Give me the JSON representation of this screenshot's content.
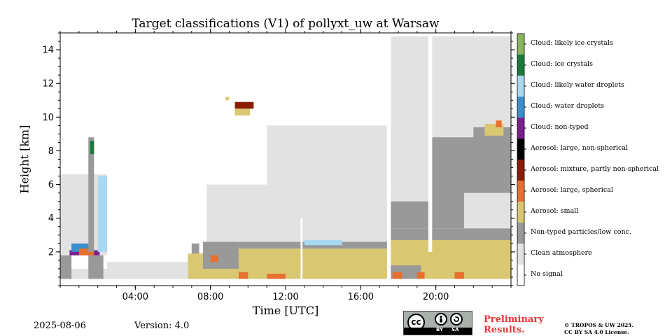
{
  "chart_data": {
    "type": "heatmap",
    "title": "Target classifications (V1) of pollyxt_uw at Warsaw",
    "xlabel": "Time [UTC]",
    "ylabel": "Height [km]",
    "xlim": [
      "00:00",
      "24:00"
    ],
    "ylim": [
      0,
      15
    ],
    "x_ticks": [
      "04:00",
      "08:00",
      "12:00",
      "16:00",
      "20:00"
    ],
    "y_ticks": [
      2,
      4,
      6,
      8,
      10,
      12,
      14
    ],
    "legend_placement": "right colorbar",
    "classes": [
      {
        "label": "Cloud: likely ice crystals",
        "color": "#8ab55d"
      },
      {
        "label": "Cloud: ice crystals",
        "color": "#1a7a3c"
      },
      {
        "label": "Cloud: likely water droplets",
        "color": "#a9d8f2"
      },
      {
        "label": "Cloud: water droplets",
        "color": "#3b8fcc"
      },
      {
        "label": "Cloud: non-typed",
        "color": "#7b1f8c"
      },
      {
        "label": "Aerosol: large, non-spherical",
        "color": "#000000"
      },
      {
        "label": "Aerosol: mixture, partly non-spherical",
        "color": "#8a1d05"
      },
      {
        "label": "Aerosol: large, spherical",
        "color": "#e8702f"
      },
      {
        "label": "Aerosol: small",
        "color": "#dac772"
      },
      {
        "label": "Non-typed particles/low conc.",
        "color": "#999999"
      },
      {
        "label": "Clean atmosphere",
        "color": "#e2e2e2"
      },
      {
        "label": "No signal",
        "color": "#ffffff"
      }
    ],
    "regions": [
      {
        "class": "Clean atmosphere",
        "t0": 0.0,
        "t1": 24.0,
        "h0": 0.4,
        "h1": 1.0
      },
      {
        "class": "Non-typed particles/low conc.",
        "t0": 0.0,
        "t1": 0.6,
        "h0": 0.4,
        "h1": 1.8
      },
      {
        "class": "Clean atmosphere",
        "t0": 0.0,
        "t1": 2.5,
        "h0": 1.8,
        "h1": 6.6
      },
      {
        "class": "Clean atmosphere",
        "t0": 2.5,
        "t1": 6.8,
        "h0": 0.4,
        "h1": 1.4
      },
      {
        "class": "Non-typed particles/low conc.",
        "t0": 1.5,
        "t1": 2.3,
        "h0": 0.4,
        "h1": 1.8
      },
      {
        "class": "Cloud: non-typed",
        "t0": 0.5,
        "t1": 2.1,
        "h0": 1.8,
        "h1": 2.1
      },
      {
        "class": "Cloud: water droplets",
        "t0": 0.6,
        "t1": 1.6,
        "h0": 2.0,
        "h1": 2.5
      },
      {
        "class": "Aerosol: large, spherical",
        "t0": 1.0,
        "t1": 1.8,
        "h0": 1.8,
        "h1": 2.2
      },
      {
        "class": "Cloud: likely water droplets",
        "t0": 2.0,
        "t1": 2.5,
        "h0": 2.0,
        "h1": 6.5
      },
      {
        "class": "Non-typed particles/low conc.",
        "t0": 1.5,
        "t1": 1.8,
        "h0": 2.0,
        "h1": 8.8
      },
      {
        "class": "Cloud: ice crystals",
        "t0": 1.6,
        "t1": 1.8,
        "h0": 7.8,
        "h1": 8.6
      },
      {
        "class": "Non-typed particles/low conc.",
        "t0": 7.0,
        "t1": 7.4,
        "h0": 0.4,
        "h1": 2.5
      },
      {
        "class": "Aerosol: small",
        "t0": 6.8,
        "t1": 17.5,
        "h0": 0.4,
        "h1": 1.9
      },
      {
        "class": "Non-typed particles/low conc.",
        "t0": 7.6,
        "t1": 9.5,
        "h0": 1.0,
        "h1": 2.6
      },
      {
        "class": "Aerosol: small",
        "t0": 9.5,
        "t1": 17.4,
        "h0": 1.0,
        "h1": 2.2
      },
      {
        "class": "Non-typed particles/low conc.",
        "t0": 9.5,
        "t1": 17.4,
        "h0": 2.2,
        "h1": 2.6
      },
      {
        "class": "Clean atmosphere",
        "t0": 7.8,
        "t1": 17.4,
        "h0": 2.6,
        "h1": 6.0
      },
      {
        "class": "Clean atmosphere",
        "t0": 11.0,
        "t1": 17.4,
        "h0": 6.0,
        "h1": 9.5
      },
      {
        "class": "Cloud: likely water droplets",
        "t0": 13.0,
        "t1": 15.0,
        "h0": 2.4,
        "h1": 2.7
      },
      {
        "class": "Aerosol: small",
        "t0": 17.6,
        "t1": 24.0,
        "h0": 0.4,
        "h1": 2.7
      },
      {
        "class": "Non-typed particles/low conc.",
        "t0": 17.6,
        "t1": 24.0,
        "h0": 2.7,
        "h1": 3.4
      },
      {
        "class": "Non-typed particles/low conc.",
        "t0": 17.6,
        "t1": 19.2,
        "h0": 0.4,
        "h1": 1.2
      },
      {
        "class": "Clean atmosphere",
        "t0": 17.6,
        "t1": 24.0,
        "h0": 3.4,
        "h1": 14.8
      },
      {
        "class": "Non-typed particles/low conc.",
        "t0": 17.6,
        "t1": 19.6,
        "h0": 3.4,
        "h1": 5.0
      },
      {
        "class": "Non-typed particles/low conc.",
        "t0": 19.8,
        "t1": 24.0,
        "h0": 3.4,
        "h1": 8.8
      },
      {
        "class": "Clean atmosphere",
        "t0": 21.5,
        "t1": 24.0,
        "h0": 3.4,
        "h1": 5.5
      },
      {
        "class": "Non-typed particles/low conc.",
        "t0": 22.0,
        "t1": 24.0,
        "h0": 8.5,
        "h1": 9.4
      },
      {
        "class": "Aerosol: small",
        "t0": 22.6,
        "t1": 23.6,
        "h0": 8.9,
        "h1": 9.6
      },
      {
        "class": "Aerosol: large, spherical",
        "t0": 23.2,
        "t1": 23.5,
        "h0": 9.4,
        "h1": 9.8
      },
      {
        "class": "Aerosol: mixture, partly non-spherical",
        "t0": 9.3,
        "t1": 10.3,
        "h0": 10.5,
        "h1": 10.9
      },
      {
        "class": "Aerosol: small",
        "t0": 9.3,
        "t1": 10.1,
        "h0": 10.1,
        "h1": 10.5
      },
      {
        "class": "Aerosol: small",
        "t0": 8.8,
        "t1": 9.0,
        "h0": 11.0,
        "h1": 11.2
      },
      {
        "class": "Aerosol: large, spherical",
        "t0": 9.5,
        "t1": 10.0,
        "h0": 0.4,
        "h1": 0.8
      },
      {
        "class": "Aerosol: large, spherical",
        "t0": 11.0,
        "t1": 12.0,
        "h0": 0.4,
        "h1": 0.7
      },
      {
        "class": "Aerosol: large, spherical",
        "t0": 8.0,
        "t1": 8.4,
        "h0": 1.4,
        "h1": 1.8
      },
      {
        "class": "Aerosol: large, spherical",
        "t0": 17.7,
        "t1": 18.2,
        "h0": 0.4,
        "h1": 0.8
      },
      {
        "class": "Aerosol: large, spherical",
        "t0": 19.0,
        "t1": 19.4,
        "h0": 0.4,
        "h1": 0.8
      },
      {
        "class": "Aerosol: large, spherical",
        "t0": 21.0,
        "t1": 21.5,
        "h0": 0.4,
        "h1": 0.8
      }
    ],
    "gaps": [
      {
        "class": "No signal",
        "t0": 17.4,
        "t1": 17.6,
        "h0": 0.4,
        "h1": 15.0
      },
      {
        "class": "No signal",
        "t0": 19.6,
        "t1": 19.8,
        "h0": 2.0,
        "h1": 15.0
      },
      {
        "class": "No signal",
        "t0": 12.8,
        "t1": 12.9,
        "h0": 0.4,
        "h1": 4.0
      }
    ]
  },
  "footer": {
    "date": "2025-08-06",
    "version": "Version: 4.0",
    "cc_by": "BY",
    "cc_sa": "SA",
    "cc_mark": "cc",
    "preliminary_line1": "Preliminary",
    "preliminary_line2": "Results.",
    "copyright_line1": "© TROPOS & UW 2025.",
    "copyright_line2": "CC BY SA 4.0 License."
  }
}
